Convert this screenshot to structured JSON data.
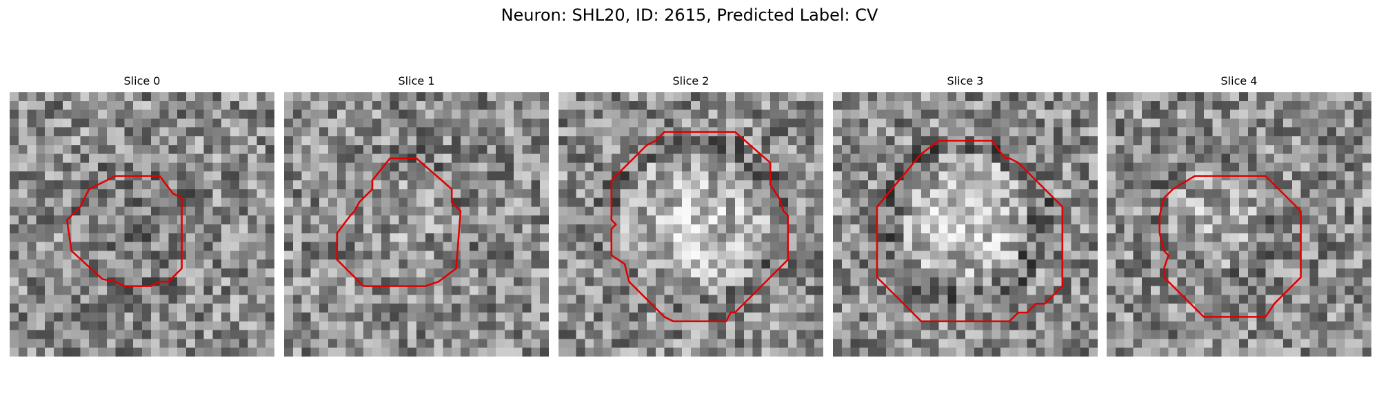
{
  "figure": {
    "title": "Neuron: SHL20, ID: 2615, Predicted Label: CV"
  },
  "grid_size": 30,
  "contour_color": "#e00000",
  "panels": [
    {
      "title": "Slice 0",
      "blob": {
        "cx": 14.8,
        "cy": 15.2,
        "r": 5.5,
        "shade": -0.1,
        "surround": -0.05
      },
      "contour": [
        [
          12,
          9.5
        ],
        [
          17,
          9.5
        ],
        [
          18.5,
          11.5
        ],
        [
          19.5,
          12
        ],
        [
          19.5,
          20
        ],
        [
          18,
          21.5
        ],
        [
          17,
          21.5
        ],
        [
          16,
          22
        ],
        [
          13,
          22
        ],
        [
          12,
          21.5
        ],
        [
          10.5,
          21.2
        ],
        [
          7,
          18
        ],
        [
          6.5,
          14.5
        ],
        [
          7.5,
          13.5
        ],
        [
          8,
          13
        ],
        [
          9,
          11
        ],
        [
          11,
          10
        ]
      ]
    },
    {
      "title": "Slice 1",
      "blob": {
        "cx": 13.5,
        "cy": 14.8,
        "r": 6.2,
        "shade": 0.05,
        "surround": -0.05
      },
      "contour": [
        [
          12,
          7.5
        ],
        [
          15,
          7.5
        ],
        [
          19,
          11
        ],
        [
          19,
          12.5
        ],
        [
          20,
          13.5
        ],
        [
          19.5,
          20
        ],
        [
          17.5,
          21.5
        ],
        [
          16,
          22
        ],
        [
          9,
          22
        ],
        [
          6,
          19
        ],
        [
          6,
          16
        ],
        [
          7.5,
          14
        ],
        [
          8,
          13.5
        ],
        [
          8.5,
          12.5
        ],
        [
          10,
          11
        ],
        [
          10,
          10
        ]
      ]
    },
    {
      "title": "Slice 2",
      "blob": {
        "cx": 15.2,
        "cy": 15.0,
        "r": 8.5,
        "shade": 0.25,
        "surround": -0.08
      },
      "contour": [
        [
          12,
          4.5
        ],
        [
          20,
          4.5
        ],
        [
          24,
          8
        ],
        [
          24,
          10.5
        ],
        [
          25,
          12
        ],
        [
          25.5,
          13.5
        ],
        [
          26,
          14
        ],
        [
          26,
          19
        ],
        [
          25,
          20
        ],
        [
          24.5,
          20.5
        ],
        [
          20,
          25
        ],
        [
          19.5,
          25
        ],
        [
          19,
          26
        ],
        [
          13,
          26
        ],
        [
          12,
          25.5
        ],
        [
          10.5,
          24
        ],
        [
          10,
          23.5
        ],
        [
          8,
          21.5
        ],
        [
          7.5,
          19.5
        ],
        [
          6,
          18.5
        ],
        [
          6,
          15.5
        ],
        [
          6.5,
          15
        ],
        [
          6,
          14.5
        ],
        [
          6,
          10
        ],
        [
          10,
          6
        ],
        [
          11,
          5.5
        ]
      ]
    },
    {
      "title": "Slice 3",
      "blob": {
        "cx": 15.0,
        "cy": 14.5,
        "r": 7.5,
        "shade": 0.3,
        "surround": -0.12
      },
      "contour": [
        [
          12,
          5.5
        ],
        [
          18,
          5.5
        ],
        [
          19.5,
          7.5
        ],
        [
          20,
          7.5
        ],
        [
          21,
          8
        ],
        [
          26,
          13
        ],
        [
          26,
          22
        ],
        [
          24,
          24
        ],
        [
          23,
          24
        ],
        [
          22,
          25
        ],
        [
          21,
          25
        ],
        [
          20,
          26
        ],
        [
          10,
          26
        ],
        [
          9,
          25
        ],
        [
          8.5,
          24.5
        ],
        [
          6,
          22
        ],
        [
          5,
          21
        ],
        [
          5,
          13
        ],
        [
          10,
          7
        ]
      ]
    },
    {
      "title": "Slice 4",
      "blob": {
        "cx": 12.5,
        "cy": 14.0,
        "r": 5.8,
        "shade": 0.15,
        "surround": -0.08
      },
      "contour": [
        [
          10,
          9.5
        ],
        [
          18,
          9.5
        ],
        [
          21,
          12.5
        ],
        [
          22,
          13.5
        ],
        [
          22,
          21
        ],
        [
          20,
          23
        ],
        [
          19,
          24
        ],
        [
          18,
          25.5
        ],
        [
          11,
          25.5
        ],
        [
          8,
          22.5
        ],
        [
          6.5,
          21
        ],
        [
          6.5,
          20
        ],
        [
          7,
          18.5
        ],
        [
          6.5,
          18
        ],
        [
          6,
          16
        ],
        [
          6,
          14
        ],
        [
          6.5,
          12
        ],
        [
          7.5,
          11
        ]
      ]
    }
  ]
}
